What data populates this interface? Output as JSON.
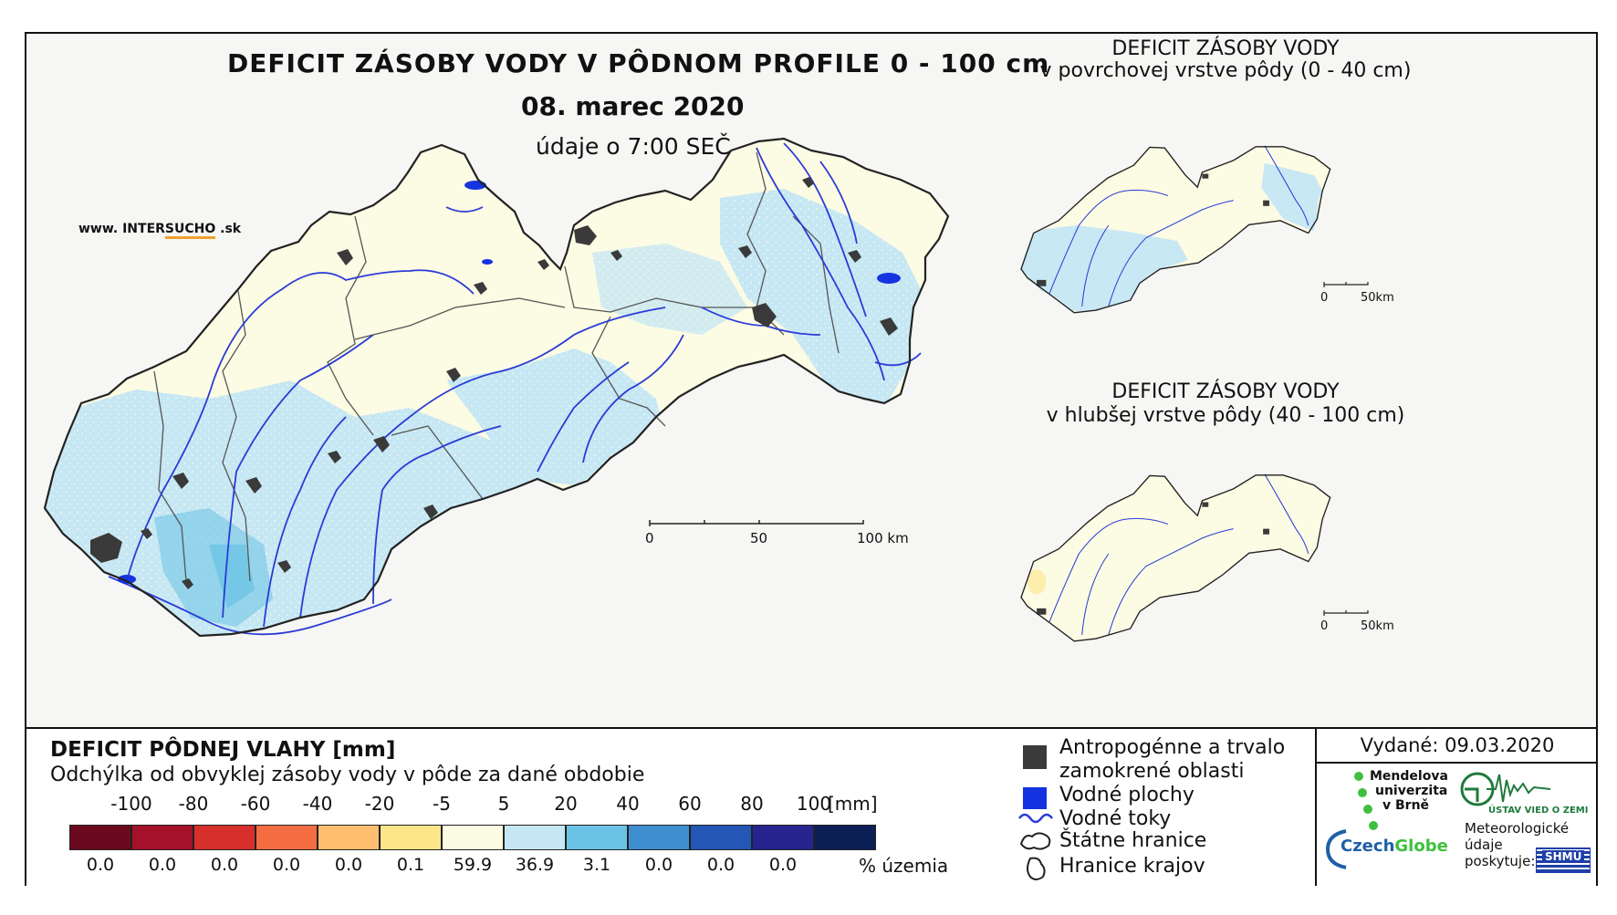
{
  "main": {
    "title": "DEFICIT ZÁSOBY VODY V PÔDNOM PROFILE 0 - 100 cm",
    "date": "08. marec 2020",
    "time": "údaje o 7:00 SEČ",
    "website_prefix": "www. INTER",
    "website_brand": "SUCHO",
    "website_suffix": " .sk",
    "scale": {
      "ticks": [
        "0",
        "50",
        "100 km"
      ]
    }
  },
  "insets": [
    {
      "title_line1": "DEFICIT ZÁSOBY VODY",
      "title_line2": "v povrchovej vrstve pôdy (0 - 40 cm)",
      "scale_ticks": [
        "0",
        "50km"
      ]
    },
    {
      "title_line1": "DEFICIT ZÁSOBY VODY",
      "title_line2": "v hlubšej vrstve pôdy (40 - 100 cm)",
      "scale_ticks": [
        "0",
        "50km"
      ]
    }
  ],
  "legend": {
    "title": "DEFICIT PÔDNEJ VLAHY [mm]",
    "subtitle": "Odchýlka od obvyklej zásoby vody v pôde za dané obdobie",
    "boundaries": [
      "-100",
      "-80",
      "-60",
      "-40",
      "-20",
      "-5",
      "5",
      "20",
      "40",
      "60",
      "80",
      "100"
    ],
    "unit": "[mm]",
    "pct_unit": "% územia",
    "classes": [
      {
        "color": "#6b0a1e",
        "pct": "0.0"
      },
      {
        "color": "#a5102a",
        "pct": "0.0"
      },
      {
        "color": "#d7302c",
        "pct": "0.0"
      },
      {
        "color": "#f46d43",
        "pct": "0.0"
      },
      {
        "color": "#fdbf6f",
        "pct": "0.0"
      },
      {
        "color": "#fde68a",
        "pct": "0.1"
      },
      {
        "color": "#fcfbe3",
        "pct": "59.9"
      },
      {
        "color": "#c6e7f4",
        "pct": "36.9"
      },
      {
        "color": "#6ac3e4",
        "pct": "3.1"
      },
      {
        "color": "#3f8fd0",
        "pct": "0.0"
      },
      {
        "color": "#2356b5",
        "pct": "0.0"
      },
      {
        "color": "#27248f",
        "pct": "0.0"
      },
      {
        "color": "#0b1f55",
        "pct": ""
      }
    ]
  },
  "symbols": {
    "urban_line1": "Antropogénne a trvalo",
    "urban_line2": "zamokrené oblasti",
    "water": "Vodné plochy",
    "rivers": "Vodné toky",
    "border": "Štátne hranice",
    "regions": "Hranice krajov"
  },
  "issued": "Vydané: 09.03.2020",
  "logos": {
    "mendel_1": "Mendelova",
    "mendel_2": "univerzita",
    "mendel_3": "v Brně",
    "ustav": "ÚSTAV VIED O ZEMI",
    "czechglobe_a": "Czech",
    "czechglobe_b": "Globe",
    "meteo_1": "Meteorologické",
    "meteo_2": "údaje",
    "meteo_3": "poskytuje:",
    "shmu": "SHMÚ"
  },
  "colors": {
    "land_dry": "#fcfbe3",
    "land_wet": "#c6e7f4",
    "land_wetter": "#6ac3e4",
    "urban": "#3a3a3a",
    "water": "#1533e0",
    "river": "#2a3bd6",
    "border": "#222222",
    "accent_logo_green": "#3ec03e"
  }
}
